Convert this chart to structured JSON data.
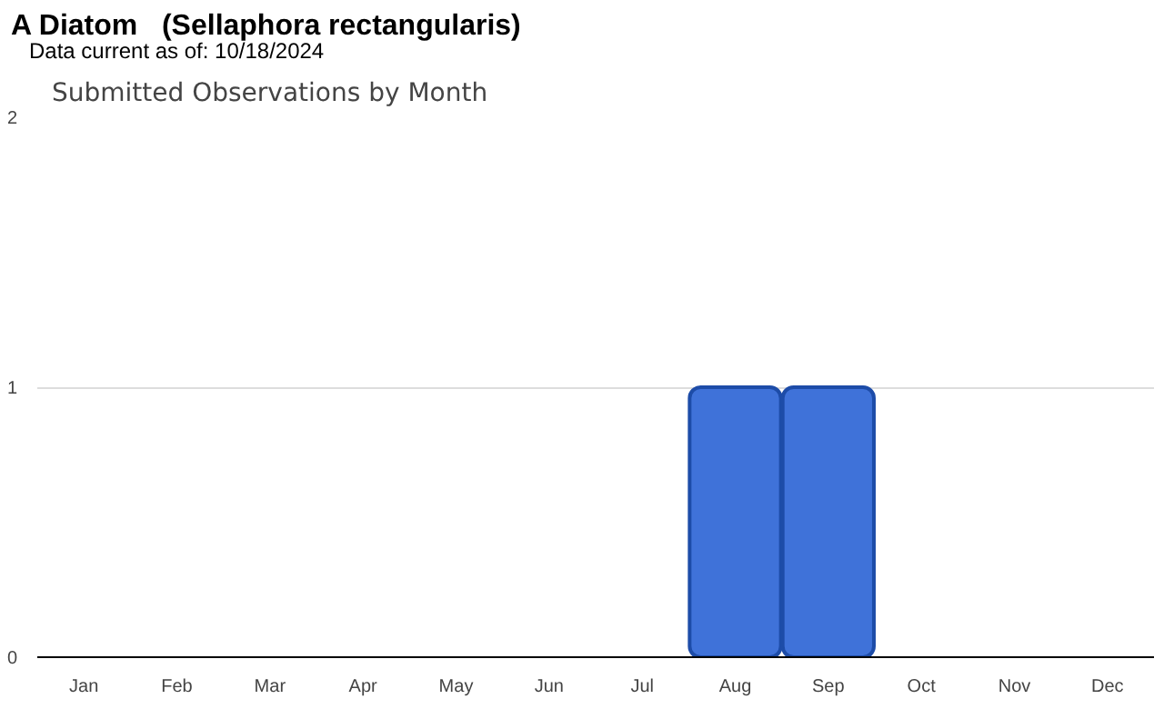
{
  "chart_data": {
    "type": "bar",
    "title": "A Diatom   (Sellaphora rectangularis)",
    "subtitle": "Data current as of: 10/18/2024",
    "annotations": [
      "Submitted Observations by Month"
    ],
    "categories": [
      "Jan",
      "Feb",
      "Mar",
      "Apr",
      "May",
      "Jun",
      "Jul",
      "Aug",
      "Sep",
      "Oct",
      "Nov",
      "Dec"
    ],
    "values": [
      0,
      0,
      0,
      0,
      0,
      0,
      0,
      1,
      1,
      0,
      0,
      0
    ],
    "color": "#3f72d9",
    "ylim": [
      0,
      2
    ],
    "yticks": [
      0,
      1,
      2
    ],
    "grid": "y"
  }
}
